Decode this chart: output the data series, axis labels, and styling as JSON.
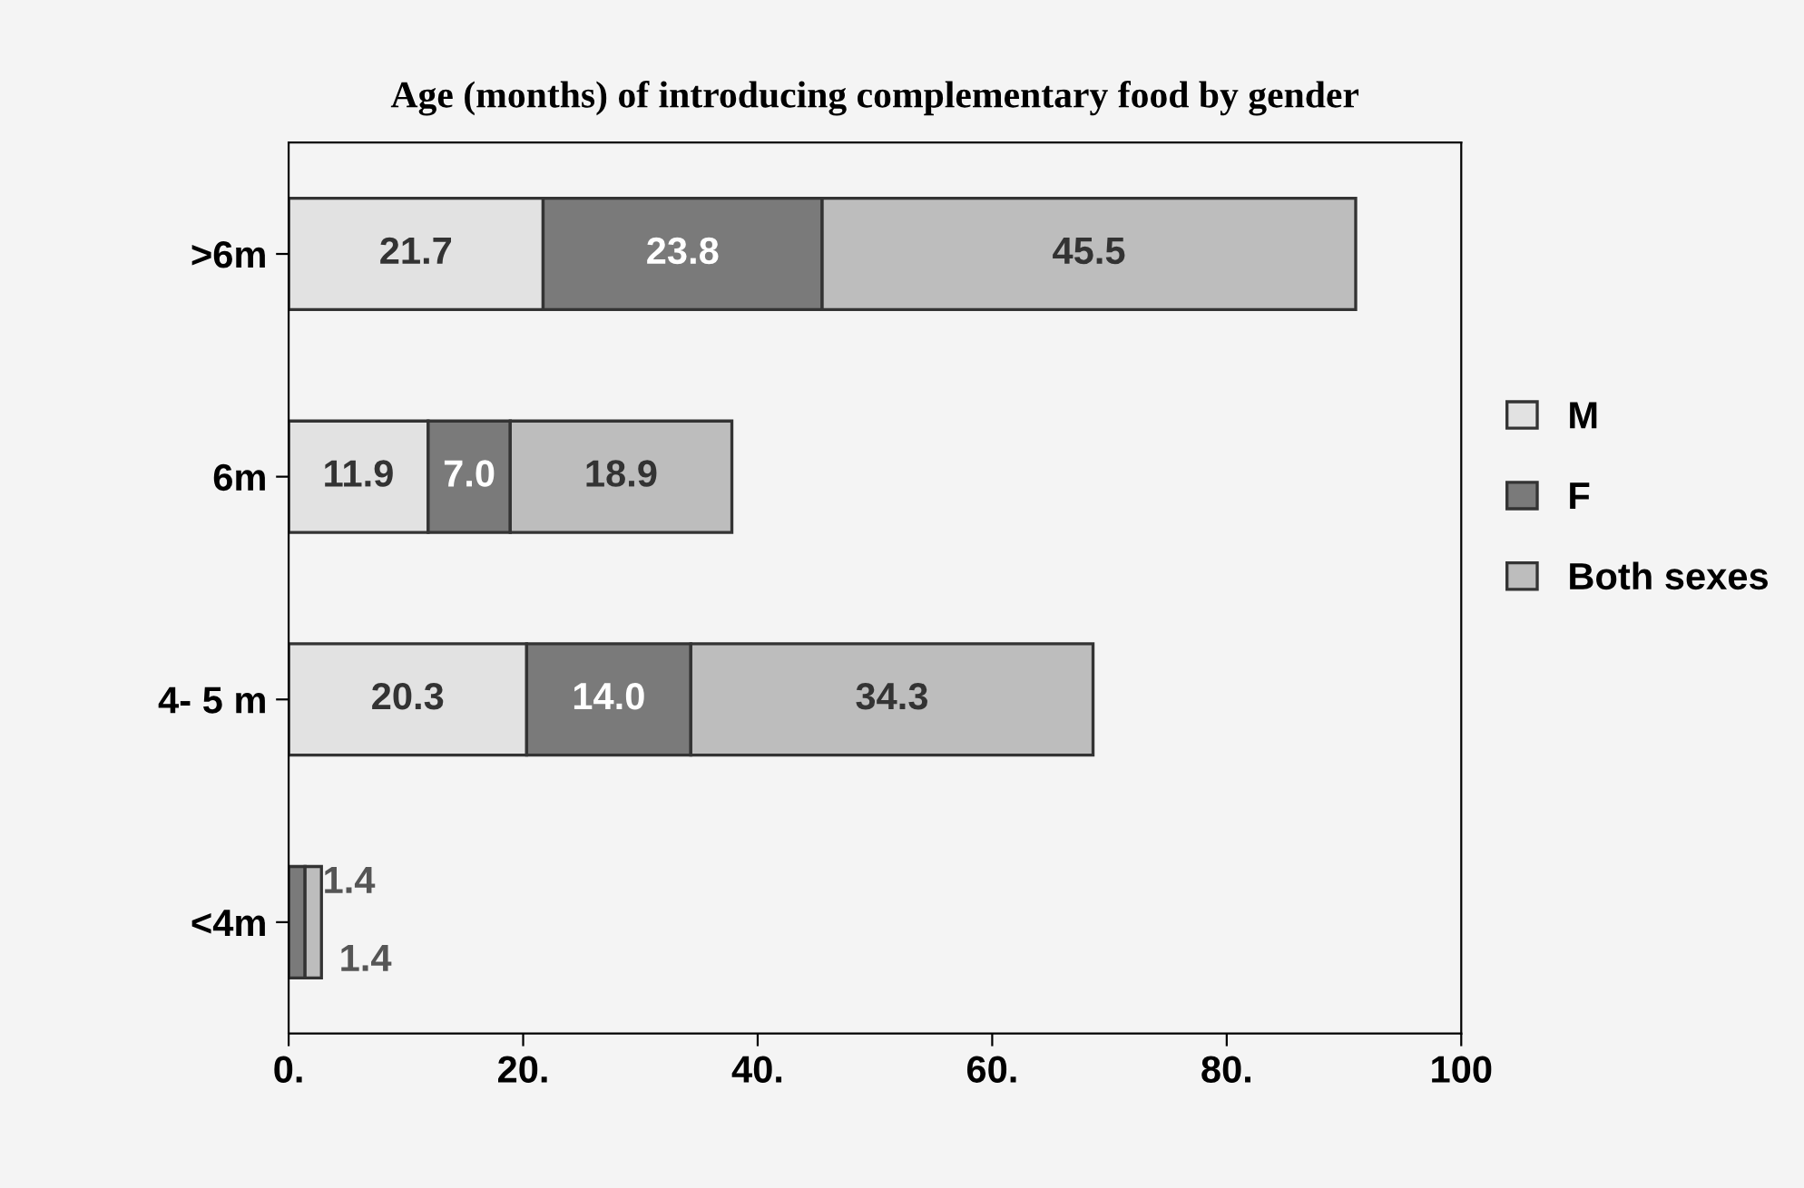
{
  "chart_data": {
    "type": "bar",
    "orientation": "horizontal",
    "stacked": true,
    "title": "Age (months) of introducing complementary food by gender",
    "categories": [
      ">6m",
      "6m",
      "4- 5 m",
      "<4m"
    ],
    "series": [
      {
        "name": "M",
        "color": "#e2e2e2",
        "values": [
          21.7,
          11.9,
          20.3,
          0
        ],
        "value_labels": [
          "21.7",
          "11.9",
          "20.3",
          null
        ]
      },
      {
        "name": "F",
        "color": "#7a7a7a",
        "values": [
          23.8,
          7.0,
          14.0,
          1.4
        ],
        "value_labels": [
          "23.8",
          "7.0",
          "14.0",
          "1.4"
        ]
      },
      {
        "name": "Both sexes",
        "color": "#bdbdbd",
        "values": [
          45.5,
          18.9,
          34.3,
          1.4
        ],
        "value_labels": [
          "45.5",
          "18.9",
          "34.3",
          "1.4"
        ]
      }
    ],
    "xlim": [
      0,
      100
    ],
    "xticks": [
      {
        "value": 0,
        "label": "0."
      },
      {
        "value": 20,
        "label": "20."
      },
      {
        "value": 40,
        "label": "40."
      },
      {
        "value": 60,
        "label": "60."
      },
      {
        "value": 80,
        "label": "80."
      },
      100
    ],
    "grid": false,
    "legend": "right"
  }
}
